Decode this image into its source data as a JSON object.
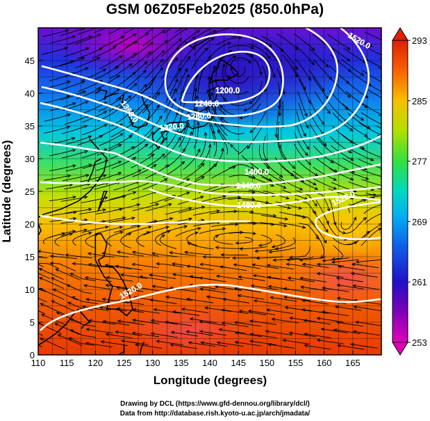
{
  "title": "GSM 06Z05Feb2025 (850.0hPa)",
  "chart_data": {
    "type": "heatmap",
    "xlabel": "Longitude (degrees)",
    "ylabel": "Latitude  (degrees)",
    "x_ticks": [
      "110",
      "115",
      "120",
      "125",
      "130",
      "135",
      "140",
      "145",
      "150",
      "155",
      "160",
      "165"
    ],
    "y_ticks": [
      "0",
      "5",
      "10",
      "15",
      "20",
      "25",
      "30",
      "35",
      "40",
      "45"
    ],
    "xlim": [
      110,
      170
    ],
    "ylim": [
      0,
      50
    ],
    "grid": true,
    "field": "temperature shading (K)",
    "colorbar": {
      "ticks": [
        "253",
        "261",
        "269",
        "277",
        "285",
        "293"
      ],
      "range": [
        253,
        293
      ],
      "colors": [
        "#e000b8",
        "#6000b8",
        "#1030d8",
        "#0090f0",
        "#00d8c8",
        "#38e040",
        "#b8e000",
        "#f8c000",
        "#f86000",
        "#e82000"
      ]
    },
    "contour_labels": [
      "1200.0",
      "1240.0",
      "1280.0",
      "1320.0",
      "1360.0",
      "1400.0",
      "1440.0",
      "1480.0",
      "1520.0",
      "1520.0",
      "1520.0",
      "1320.0",
      "1360.0"
    ],
    "contours": [
      {
        "label": "1200.0",
        "closed": true
      },
      {
        "label": "1240.0",
        "closed": true
      },
      {
        "label": "1280.0"
      },
      {
        "label": "1320.0"
      },
      {
        "label": "1360.0"
      },
      {
        "label": "1400.0"
      },
      {
        "label": "1440.0"
      },
      {
        "label": "1480.0"
      },
      {
        "label": "1520.0"
      }
    ],
    "overlay": "streamlines of wind"
  },
  "credits": {
    "line1": "Drawing by DCL (https://www.gfd-dennou.org/library/dcl/)",
    "line2": "Data from http://database.rish.kyoto-u.ac.jp/arch/jmadata/"
  }
}
